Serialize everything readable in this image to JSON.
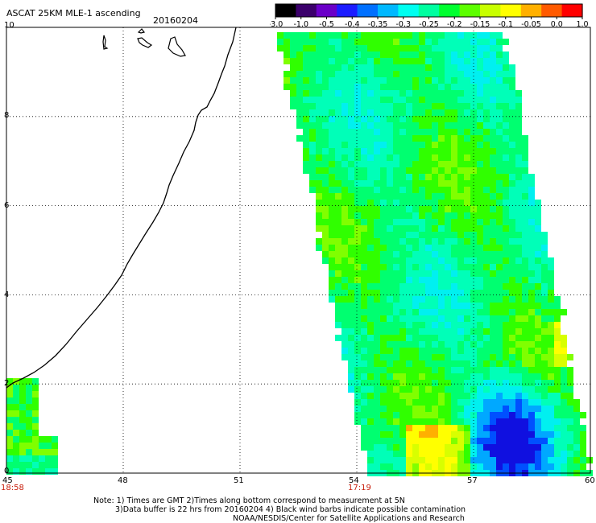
{
  "title": {
    "product": "ASCAT 25KM MLE-1 ascending",
    "date": "20160204"
  },
  "colorbar": {
    "ticks": [
      "-3.0",
      "-1.0",
      "-0.5",
      "-0.4",
      "-0.35",
      "-0.3",
      "-0.25",
      "-0.2",
      "-0.15",
      "-0.1",
      "-0.05",
      "0.0",
      "1.0"
    ],
    "colors": [
      "#000000",
      "#3b006b",
      "#6a00c8",
      "#1c1cff",
      "#0070ff",
      "#00b8ff",
      "#00fff0",
      "#00ffa0",
      "#00ff30",
      "#5cff00",
      "#c8ff00",
      "#ffff00",
      "#ffb000",
      "#ff5a00",
      "#ff0000"
    ]
  },
  "map": {
    "x_range": [
      45,
      60
    ],
    "y_range": [
      0,
      10
    ],
    "x_ticks": [
      "45",
      "48",
      "51",
      "54",
      "57",
      "60"
    ],
    "y_ticks": [
      "0",
      "2",
      "4",
      "6",
      "8",
      "10"
    ],
    "time_labels": [
      {
        "lon": 45,
        "text": "18:58"
      },
      {
        "lon": 54,
        "text": "17:19"
      }
    ],
    "gridlines": "dotted"
  },
  "notes": [
    "Note: 1) Times are GMT 2)Times along bottom correspond to measurement at 5N",
    "3)Data buffer is 22 hrs from 20160204 4) Black wind barbs indicate possible contamination",
    "NOAA/NESDIS/Center for Satellite Applications and Research"
  ]
}
